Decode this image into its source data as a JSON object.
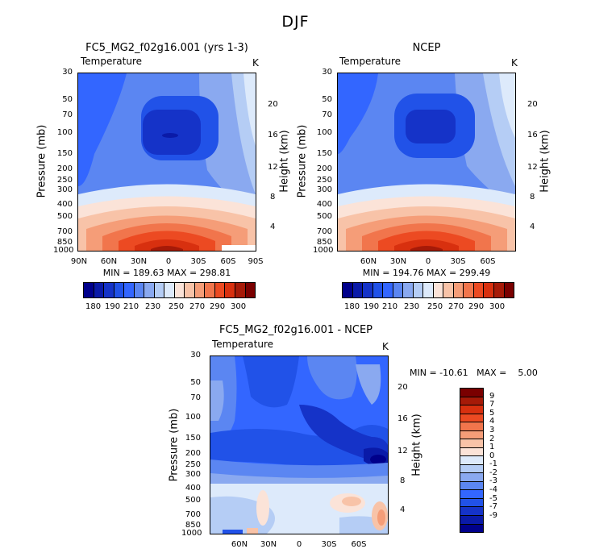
{
  "suptitle": "DJF",
  "colors": {
    "abs": [
      "#00008b",
      "#0a1aa8",
      "#1533c8",
      "#2152e8",
      "#3366ff",
      "#5b86f2",
      "#8aa9f0",
      "#b5cdf5",
      "#ddeafb",
      "#fbe3d8",
      "#f8c3a8",
      "#f59d78",
      "#f1754c",
      "#ec4a22",
      "#d8300f",
      "#a61a08",
      "#7a0000"
    ],
    "diff": [
      "#00008b",
      "#0a1aa8",
      "#1533c8",
      "#2152e8",
      "#3366ff",
      "#5b86f2",
      "#8aa9f0",
      "#b5cdf5",
      "#ddeafb",
      "#fbe3d8",
      "#f8c3a8",
      "#f59d78",
      "#f1754c",
      "#ec4a22",
      "#d8300f",
      "#a61a08",
      "#7a0000"
    ]
  },
  "panels": {
    "model": {
      "title": "FC5_MG2_f02g16.001 (yrs 1-3)",
      "variable": "Temperature",
      "units": "K",
      "stats": "MIN = 189.63   MAX = 298.81",
      "ylabel": "Pressure (mb)",
      "y2label": "Height (km)"
    },
    "obs": {
      "title": "NCEP",
      "variable": "Temperature",
      "units": "K",
      "stats": "MIN = 194.76   MAX = 299.49",
      "ylabel": "Pressure (mb)",
      "y2label": "Height (km)"
    },
    "diff": {
      "title": "FC5_MG2_f02g16.001 - NCEP",
      "variable": "Temperature",
      "units": "K",
      "stats": "MIN = -10.61   MAX =    5.00",
      "ylabel": "Pressure (mb)",
      "y2label": "Height (km)"
    }
  },
  "chart_data": [
    {
      "type": "heatmap",
      "title": "FC5_MG2_f02g16.001 (yrs 1-3)",
      "subtitle": "Temperature",
      "units": "K",
      "min": 189.63,
      "max": 298.81,
      "ylabel": "Pressure (mb)",
      "y2label": "Height (km)",
      "x_ticks": [
        "90N",
        "60N",
        "30N",
        "0",
        "30S",
        "60S",
        "90S"
      ],
      "y_ticks": [
        "30",
        "50",
        "70",
        "100",
        "150",
        "200",
        "250",
        "300",
        "400",
        "500",
        "700",
        "850",
        "1000"
      ],
      "y2_ticks": [
        "20",
        "16",
        "12",
        "8",
        "4"
      ],
      "levels": [
        180,
        190,
        200,
        210,
        220,
        230,
        240,
        250,
        260,
        270,
        280,
        290,
        300
      ],
      "colorbar_labels": [
        "180",
        "190",
        "210",
        "230",
        "250",
        "270",
        "290",
        "300"
      ]
    },
    {
      "type": "heatmap",
      "title": "NCEP",
      "subtitle": "Temperature",
      "units": "K",
      "min": 194.76,
      "max": 299.49,
      "ylabel": "Pressure (mb)",
      "y2label": "Height (km)",
      "x_ticks": [
        "60N",
        "30N",
        "0",
        "30S",
        "60S"
      ],
      "y_ticks": [
        "30",
        "50",
        "70",
        "100",
        "150",
        "200",
        "250",
        "300",
        "400",
        "500",
        "700",
        "850",
        "1000"
      ],
      "y2_ticks": [
        "20",
        "16",
        "12",
        "8",
        "4"
      ],
      "levels": [
        180,
        190,
        200,
        210,
        220,
        230,
        240,
        250,
        260,
        270,
        280,
        290,
        300
      ],
      "colorbar_labels": [
        "180",
        "190",
        "210",
        "230",
        "250",
        "270",
        "290",
        "300"
      ]
    },
    {
      "type": "heatmap",
      "title": "FC5_MG2_f02g16.001 - NCEP",
      "subtitle": "Temperature",
      "units": "K",
      "min": -10.61,
      "max": 5.0,
      "ylabel": "Pressure (mb)",
      "y2label": "Height (km)",
      "x_ticks": [
        "60N",
        "30N",
        "0",
        "30S",
        "60S"
      ],
      "y_ticks": [
        "30",
        "50",
        "70",
        "100",
        "150",
        "200",
        "250",
        "300",
        "400",
        "500",
        "700",
        "850",
        "1000"
      ],
      "y2_ticks": [
        "20",
        "16",
        "12",
        "8",
        "4"
      ],
      "levels": [
        -9,
        -7,
        -5,
        -4,
        -3,
        -2,
        -1,
        0,
        1,
        2,
        3,
        4,
        5,
        7,
        9
      ],
      "colorbar_labels": [
        "9",
        "7",
        "5",
        "4",
        "3",
        "2",
        "1",
        "0",
        "-1",
        "-2",
        "-3",
        "-4",
        "-5",
        "-7",
        "-9"
      ]
    }
  ]
}
